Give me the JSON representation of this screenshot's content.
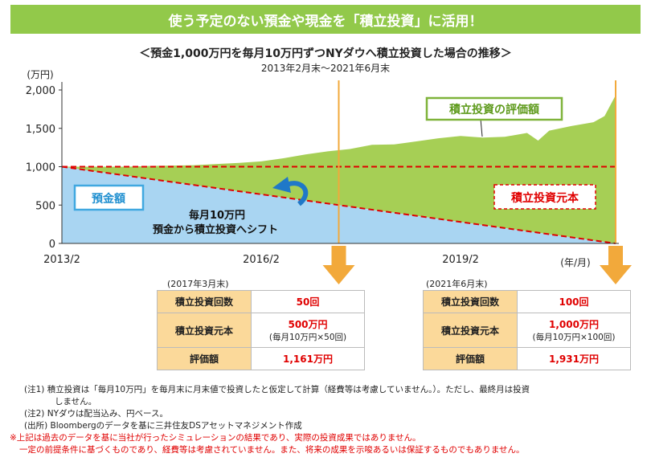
{
  "banner": "使う予定のない預金や現金を「積立投資」に活用！",
  "title": "＜預金1,000万円を毎月10万円ずつNYダウへ積立投資した場合の推移＞",
  "subtitle": "2013年2月末～2021年6月末",
  "chart_data": {
    "type": "area",
    "ylabel": "(万円)",
    "xlabel": "(年/月)",
    "ylim": [
      0,
      2000
    ],
    "yticks": [
      "0",
      "500",
      "1,000",
      "1,500",
      "2,000"
    ],
    "xticks": [
      "2013/2",
      "2016/2",
      "2019/2"
    ],
    "grid": false,
    "series": [
      {
        "name": "積立投資の評価額",
        "color": "#a6cf55",
        "points": [
          [
            0,
            1000
          ],
          [
            6,
            1000
          ],
          [
            12,
            1000
          ],
          [
            16,
            1010
          ],
          [
            20,
            1015
          ],
          [
            24,
            1020
          ],
          [
            28,
            1035
          ],
          [
            32,
            1050
          ],
          [
            36,
            1070
          ],
          [
            40,
            1110
          ],
          [
            44,
            1160
          ],
          [
            48,
            1200
          ],
          [
            52,
            1230
          ],
          [
            56,
            1285
          ],
          [
            60,
            1290
          ],
          [
            64,
            1330
          ],
          [
            68,
            1370
          ],
          [
            72,
            1400
          ],
          [
            76,
            1380
          ],
          [
            80,
            1390
          ],
          [
            84,
            1440
          ],
          [
            86,
            1340
          ],
          [
            88,
            1470
          ],
          [
            92,
            1530
          ],
          [
            96,
            1580
          ],
          [
            98,
            1660
          ],
          [
            100,
            1931
          ]
        ]
      },
      {
        "name": "預金額",
        "color": "#a9d5f2",
        "points": [
          [
            0,
            1000
          ],
          [
            100,
            0
          ]
        ]
      },
      {
        "name": "積立投資元本",
        "color": "#e00000",
        "points": [
          [
            0,
            1000
          ],
          [
            100,
            1000
          ]
        ]
      }
    ],
    "annotations": [
      "毎月10万円",
      "預金から積立投資へシフト"
    ]
  },
  "tables": [
    {
      "date": "(2017年3月末)",
      "rows": [
        {
          "label": "積立投資回数",
          "value": "50回"
        },
        {
          "label": "積立投資元本",
          "value": "500万円",
          "sub": "(毎月10万円×50回)"
        },
        {
          "label": "評価額",
          "value": "1,161万円"
        }
      ]
    },
    {
      "date": "(2021年6月末)",
      "rows": [
        {
          "label": "積立投資回数",
          "value": "100回"
        },
        {
          "label": "積立投資元本",
          "value": "1,000万円",
          "sub": "(毎月10万円×100回)"
        },
        {
          "label": "評価額",
          "value": "1,931万円"
        }
      ]
    }
  ],
  "notes": [
    "(注1) 積立投資は「毎月10万円」を毎月末に月末値で投資したと仮定して計算（経費等は考慮していません。）。ただし、最終月は投資",
    "しません。",
    "(注2) NYダウは配当込み、円ベース。",
    "(出所) Bloombergのデータを基に三井住友DSアセットマネジメント作成",
    "※上記は過去のデータを基に当社が行ったシミュレーションの結果であり、実際の投資成果ではありません。",
    "一定の前提条件に基づくものであり、経費等は考慮されていません。また、将来の成果を示唆あるいは保証するものでもありません。"
  ]
}
